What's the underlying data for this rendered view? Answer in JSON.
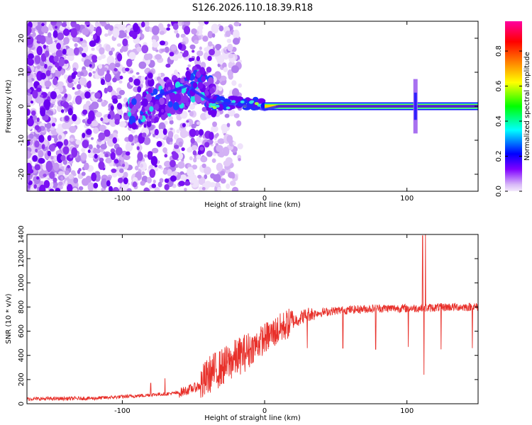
{
  "title": "S126.2026.110.18.39.R18",
  "chart_data": [
    {
      "type": "heatmap",
      "xlabel": "Height of straight line (km)",
      "ylabel": "Frequency (Hz)",
      "xlim": [
        -167,
        150
      ],
      "ylim": [
        -25,
        25
      ],
      "xticks": [
        -100,
        0,
        100
      ],
      "yticks": [
        -20,
        -10,
        0,
        10,
        20
      ],
      "colorbar": {
        "label": "Normalized spectral amplitude",
        "range": [
          0,
          0.97
        ],
        "ticks": [
          0.0,
          0.2,
          0.4,
          0.6,
          0.8
        ],
        "tick_labels": [
          "0.0",
          "0.2",
          "0.4",
          "0.6",
          "0.8"
        ],
        "colors": [
          "#f4eafc",
          "#8000ff",
          "#0000ff",
          "#00ffff",
          "#00ff00",
          "#ffff00",
          "#ff8000",
          "#ff0000",
          "#ff00a0"
        ]
      },
      "ridge": {
        "description_points": [
          {
            "x": -75,
            "y": 3
          },
          {
            "x": -55,
            "y": 6
          },
          {
            "x": -40,
            "y": 2
          },
          {
            "x": -30,
            "y": 1
          },
          {
            "x": -10,
            "y": 0
          },
          {
            "x": 0,
            "y": -1
          },
          {
            "x": 10,
            "y": 0
          },
          {
            "x": 150,
            "y": 0
          }
        ]
      }
    },
    {
      "type": "line",
      "xlabel": "Height of straight line (km)",
      "ylabel": "SNR (10 * v/v)",
      "xlim": [
        -167,
        150
      ],
      "ylim": [
        0,
        1400
      ],
      "xticks": [
        -100,
        0,
        100
      ],
      "yticks": [
        0,
        200,
        400,
        600,
        800,
        1000,
        1200,
        1400
      ],
      "series": [
        {
          "name": "SNR",
          "color": "#e8302a",
          "trend_points": [
            {
              "x": -167,
              "y": 40
            },
            {
              "x": -120,
              "y": 45
            },
            {
              "x": -90,
              "y": 65
            },
            {
              "x": -60,
              "y": 90
            },
            {
              "x": -45,
              "y": 150
            },
            {
              "x": -38,
              "y": 250
            },
            {
              "x": -30,
              "y": 300
            },
            {
              "x": -20,
              "y": 380
            },
            {
              "x": -10,
              "y": 450
            },
            {
              "x": 0,
              "y": 540
            },
            {
              "x": 15,
              "y": 650
            },
            {
              "x": 30,
              "y": 740
            },
            {
              "x": 50,
              "y": 770
            },
            {
              "x": 80,
              "y": 790
            },
            {
              "x": 110,
              "y": 790
            },
            {
              "x": 130,
              "y": 800
            },
            {
              "x": 150,
              "y": 800
            }
          ],
          "spikes": [
            {
              "x": -80,
              "y": 170
            },
            {
              "x": -70,
              "y": 210
            },
            {
              "x": 30,
              "y": 460
            },
            {
              "x": 55,
              "y": 460
            },
            {
              "x": 78,
              "y": 450
            },
            {
              "x": 101,
              "y": 470
            },
            {
              "x": 111,
              "y": 1390
            },
            {
              "x": 112,
              "y": 240
            },
            {
              "x": 113,
              "y": 1400
            },
            {
              "x": 124,
              "y": 450
            },
            {
              "x": 146,
              "y": 460
            }
          ]
        }
      ]
    }
  ]
}
